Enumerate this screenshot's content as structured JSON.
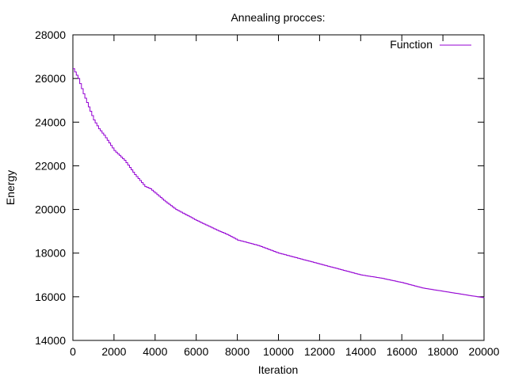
{
  "chart_data": {
    "type": "line",
    "title": "Annealing procces:",
    "xlabel": "Iteration",
    "ylabel": "Energy",
    "xlim": [
      0,
      20000
    ],
    "ylim": [
      14000,
      28000
    ],
    "xticks": [
      0,
      2000,
      4000,
      6000,
      8000,
      10000,
      12000,
      14000,
      16000,
      18000,
      20000
    ],
    "yticks": [
      14000,
      16000,
      18000,
      20000,
      22000,
      24000,
      26000,
      28000
    ],
    "xtick_labels": [
      "0",
      "2000",
      "4000",
      "6000",
      "8000",
      "10000",
      "12000",
      "14000",
      "16000",
      "18000",
      "20000"
    ],
    "ytick_labels": [
      "14000",
      "16000",
      "18000",
      "20000",
      "22000",
      "24000",
      "26000",
      "28000"
    ],
    "grid": false,
    "legend": {
      "position": "top-right"
    },
    "series": [
      {
        "name": "Function",
        "color": "#9400d3",
        "x": [
          0,
          250,
          500,
          750,
          1000,
          1250,
          1500,
          2000,
          2500,
          3000,
          3500,
          3750,
          4000,
          4500,
          5000,
          5500,
          6000,
          7000,
          7500,
          8000,
          9000,
          10000,
          11000,
          12000,
          13000,
          14000,
          15000,
          16000,
          17000,
          18000,
          19000,
          20000
        ],
        "values": [
          26450,
          26000,
          25300,
          24700,
          24100,
          23700,
          23400,
          22700,
          22250,
          21600,
          21050,
          20950,
          20750,
          20350,
          20000,
          19750,
          19500,
          19050,
          18850,
          18600,
          18350,
          18000,
          17750,
          17500,
          17250,
          17000,
          16850,
          16650,
          16400,
          16250,
          16100,
          15950
        ]
      }
    ]
  }
}
